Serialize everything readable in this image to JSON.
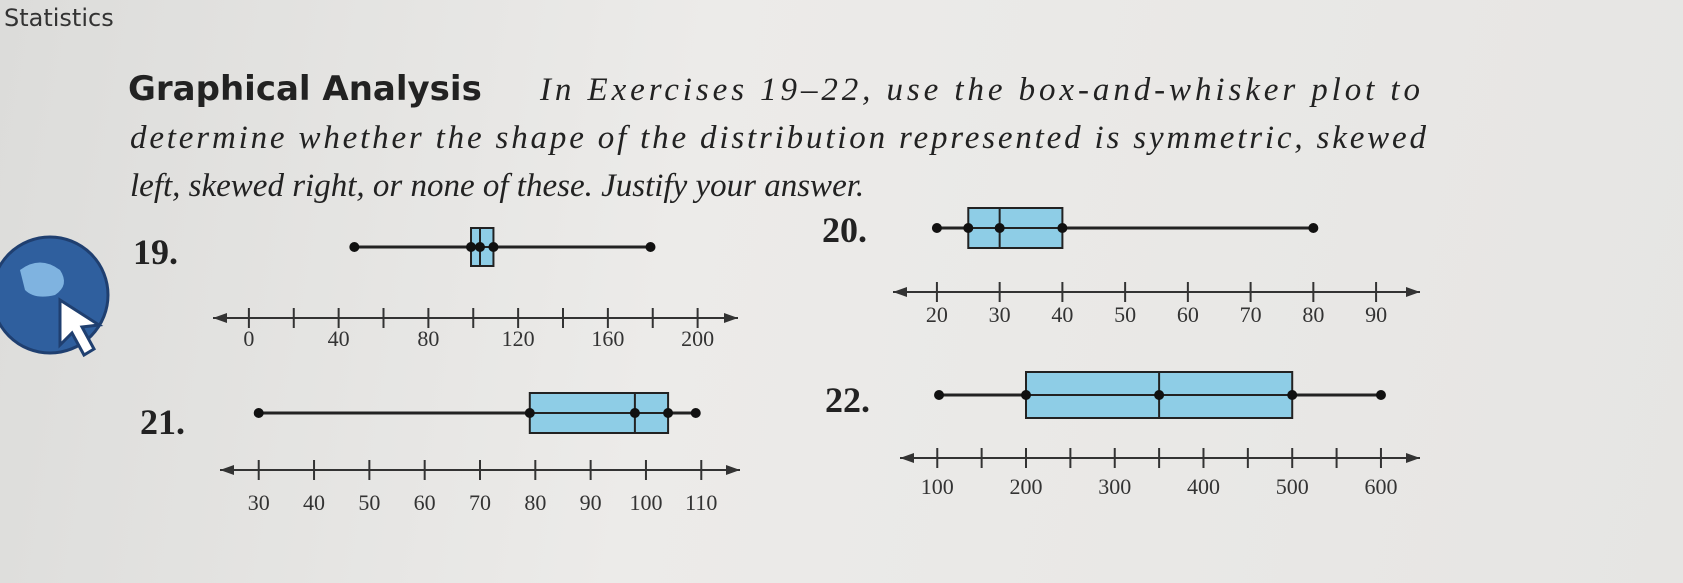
{
  "header": {
    "title": "Statistics"
  },
  "instructions": {
    "heading": "Graphical Analysis",
    "lines": [
      "In Exercises 19–22, use the box-and-whisker plot to",
      "determine whether the shape of the distribution represented is symmetric, skewed",
      "left, skewed right, or none of these. Justify your answer."
    ]
  },
  "chart_data": [
    {
      "type": "box",
      "number": "19.",
      "min": 47,
      "q1": 99,
      "median": 103,
      "q3": 109,
      "max": 179,
      "xlim": [
        -16,
        218
      ],
      "xticks": [
        0,
        20,
        40,
        60,
        80,
        100,
        120,
        140,
        160,
        180,
        200
      ],
      "xtick_labels": [
        0,
        40,
        80,
        120,
        160,
        200
      ],
      "color": "#8ecde6"
    },
    {
      "type": "box",
      "number": "20.",
      "min": 20,
      "q1": 25,
      "median": 30,
      "q3": 40,
      "max": 80,
      "xlim": [
        13,
        97
      ],
      "xticks": [
        20,
        30,
        40,
        50,
        60,
        70,
        80,
        90
      ],
      "xtick_labels": [
        20,
        30,
        40,
        50,
        60,
        70,
        80,
        90
      ],
      "color": "#8ecde6"
    },
    {
      "type": "box",
      "number": "21.",
      "min": 30,
      "q1": 79,
      "median": 98,
      "q3": 104,
      "max": 109,
      "xlim": [
        23,
        117
      ],
      "xticks": [
        30,
        40,
        50,
        60,
        70,
        80,
        90,
        100,
        110
      ],
      "xtick_labels": [
        30,
        40,
        50,
        60,
        70,
        80,
        90,
        100,
        110
      ],
      "color": "#8ecde6"
    },
    {
      "type": "box",
      "number": "22.",
      "min": 102,
      "q1": 200,
      "median": 350,
      "q3": 500,
      "max": 600,
      "xlim": [
        58,
        644
      ],
      "xticks": [
        100,
        150,
        200,
        250,
        300,
        350,
        400,
        450,
        500,
        550,
        600
      ],
      "xtick_labels": [
        100,
        200,
        300,
        400,
        500,
        600
      ],
      "color": "#8ecde6"
    }
  ]
}
